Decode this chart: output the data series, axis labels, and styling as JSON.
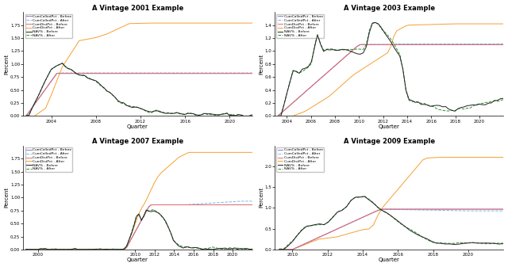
{
  "panels": [
    {
      "title": "A Vintage 2001 Example",
      "vintage": 2001,
      "xlim": [
        2001.5,
        2022
      ],
      "ylim": [
        0,
        2.0
      ],
      "xticks": [
        2004,
        2008,
        2012,
        2016,
        2020
      ],
      "yticks": [
        0.0,
        0.25,
        0.5,
        0.75,
        1.0,
        1.25,
        1.5,
        1.75
      ]
    },
    {
      "title": "A Vintage 2003 Example",
      "vintage": 2003,
      "xlim": [
        2003,
        2022
      ],
      "ylim": [
        0,
        1.6
      ],
      "xticks": [
        2004,
        2006,
        2008,
        2010,
        2012,
        2014,
        2016,
        2018,
        2020
      ],
      "yticks": [
        0.0,
        0.2,
        0.4,
        0.6,
        0.8,
        1.0,
        1.2,
        1.4
      ]
    },
    {
      "title": "A Vintage 2007 Example",
      "vintage": 2007,
      "xlim": [
        1998.5,
        2022
      ],
      "ylim": [
        0,
        2.0
      ],
      "xticks": [
        2000,
        2010,
        2012,
        2014,
        2016,
        2018,
        2020
      ],
      "yticks": [
        0.0,
        0.25,
        0.5,
        0.75,
        1.0,
        1.25,
        1.5,
        1.75
      ]
    },
    {
      "title": "A Vintage 2009 Example",
      "vintage": 2009,
      "xlim": [
        2009,
        2022
      ],
      "ylim": [
        0,
        2.5
      ],
      "xticks": [
        2010,
        2012,
        2014,
        2016,
        2018,
        2020
      ],
      "yticks": [
        0.0,
        0.5,
        1.0,
        1.5,
        2.0
      ]
    }
  ],
  "legend_labels": [
    "CumCalledPct - Before",
    "CumCalledPct - After",
    "CumDistPct - Before",
    "CumDistPct - After",
    "NAV% - Before",
    "NAV% - After"
  ],
  "colors": {
    "called_b": "#8b78c8",
    "called_a": "#7ab8e8",
    "dist_b": "#e87070",
    "dist_a": "#f5a030",
    "nav_b": "#222222",
    "nav_a": "#2d8c2d"
  }
}
